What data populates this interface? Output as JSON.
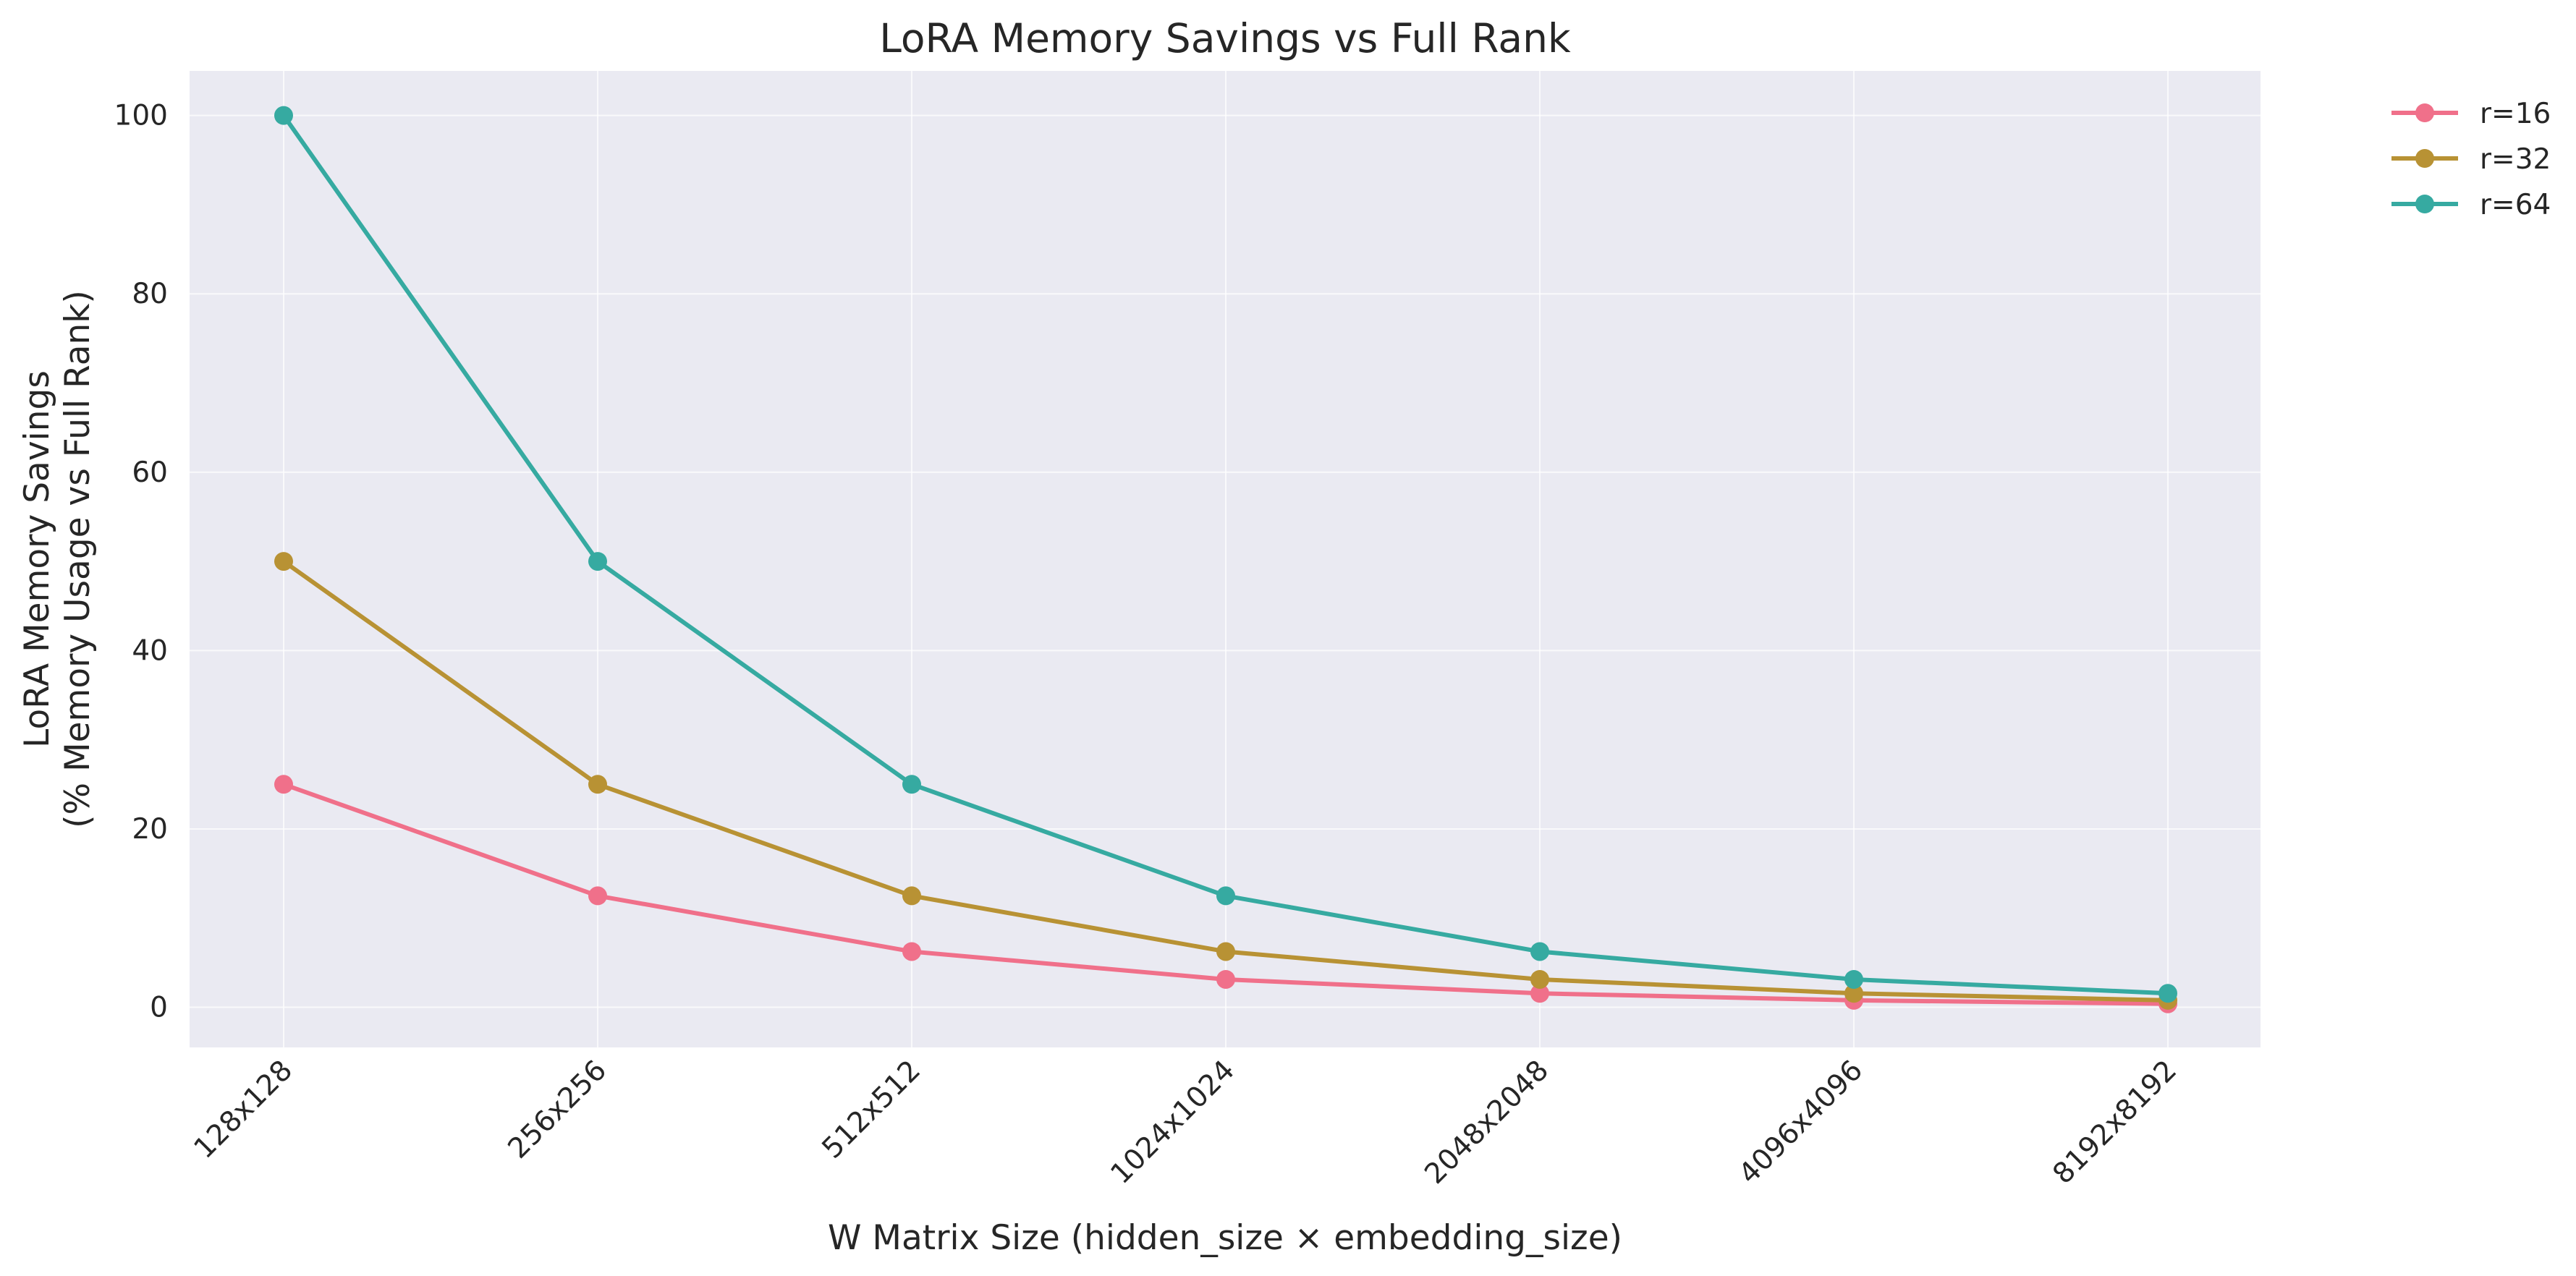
{
  "chart_data": {
    "type": "line",
    "title": "LoRA Memory Savings vs Full Rank",
    "xlabel": "W Matrix Size (hidden_size × embedding_size)",
    "ylabel_lines": [
      "LoRA Memory Savings",
      "(% Memory Usage vs Full Rank)"
    ],
    "categories": [
      "128x128",
      "256x256",
      "512x512",
      "1024x1024",
      "2048x2048",
      "4096x4096",
      "8192x8192"
    ],
    "ylim": [
      -4.5,
      105
    ],
    "yticks": [
      0,
      20,
      40,
      60,
      80,
      100
    ],
    "grid": true,
    "legend_position": "outside-top-right",
    "plot_background": "#eaeaf2",
    "series": [
      {
        "name": "r=16",
        "color": "#f0708a",
        "values": [
          25,
          12.5,
          6.25,
          3.125,
          1.5625,
          0.78125,
          0.390625
        ]
      },
      {
        "name": "r=32",
        "color": "#b89234",
        "values": [
          50,
          25,
          12.5,
          6.25,
          3.125,
          1.5625,
          0.78125
        ]
      },
      {
        "name": "r=64",
        "color": "#36aaa1",
        "values": [
          100,
          50,
          25,
          12.5,
          6.25,
          3.125,
          1.5625
        ]
      }
    ]
  }
}
